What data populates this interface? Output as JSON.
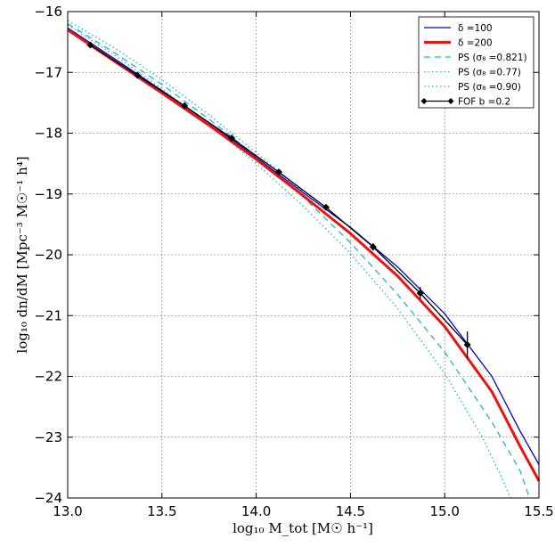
{
  "chart_data": {
    "type": "line",
    "xlabel": "log₁₀ M_tot [M☉ h⁻¹]",
    "ylabel": "log₁₀ dn/dM [Mpc⁻³ M☉⁻¹ h⁴]",
    "xlim": [
      13.0,
      15.5
    ],
    "ylim": [
      -24,
      -16
    ],
    "xticks": [
      "13.0",
      "13.5",
      "14.0",
      "14.5",
      "15.0",
      "15.5"
    ],
    "yticks": [
      "−16",
      "−17",
      "−18",
      "−19",
      "−20",
      "−21",
      "−22",
      "−23",
      "−24"
    ],
    "grid": true,
    "legend_position": "top-right",
    "series": [
      {
        "name": "δ =100",
        "color": "#0000cc",
        "style": "solid",
        "width": "thin",
        "x": [
          13.0,
          13.25,
          13.5,
          13.75,
          14.0,
          14.25,
          14.5,
          14.75,
          15.0,
          15.25,
          15.4,
          15.5
        ],
        "y": [
          -16.27,
          -16.78,
          -17.3,
          -17.83,
          -18.4,
          -18.98,
          -19.55,
          -20.2,
          -20.97,
          -22.0,
          -22.9,
          -23.45
        ]
      },
      {
        "name": "δ =200",
        "color": "#ee1111",
        "style": "solid",
        "width": "thick",
        "x": [
          13.0,
          13.25,
          13.5,
          13.75,
          14.0,
          14.25,
          14.5,
          14.75,
          15.0,
          15.25,
          15.4,
          15.5
        ],
        "y": [
          -16.3,
          -16.82,
          -17.34,
          -17.87,
          -18.43,
          -19.03,
          -19.65,
          -20.35,
          -21.18,
          -22.25,
          -23.15,
          -23.72
        ]
      },
      {
        "name": "PS (σ₈ =0.821)",
        "color": "#1fb8b8",
        "style": "dashed",
        "width": "thin",
        "x": [
          13.0,
          13.25,
          13.5,
          13.75,
          14.0,
          14.25,
          14.5,
          14.75,
          15.0,
          15.25,
          15.4,
          15.45
        ],
        "y": [
          -16.2,
          -16.68,
          -17.2,
          -17.77,
          -18.38,
          -19.05,
          -19.8,
          -20.65,
          -21.6,
          -22.75,
          -23.55,
          -24.0
        ]
      },
      {
        "name": "PS (σ₈ =0.77)",
        "color": "#1fb8b8",
        "style": "dotted",
        "width": "thin",
        "x": [
          13.0,
          13.25,
          13.5,
          13.75,
          14.0,
          14.25,
          14.5,
          14.75,
          15.0,
          15.2,
          15.3,
          15.35
        ],
        "y": [
          -16.22,
          -16.72,
          -17.27,
          -17.86,
          -18.5,
          -19.2,
          -19.98,
          -20.88,
          -21.95,
          -23.0,
          -23.65,
          -24.0
        ]
      },
      {
        "name": "PS (σ₈ =0.90)",
        "color": "#1fb8b8",
        "style": "dotted",
        "width": "thin",
        "x": [
          13.0,
          13.25,
          13.5,
          13.75,
          14.0,
          14.25
        ],
        "y": [
          -16.15,
          -16.6,
          -17.12,
          -17.7,
          -18.32,
          -18.97
        ]
      },
      {
        "name": "FOF b =0.2",
        "color": "#000000",
        "style": "solid",
        "width": "thin",
        "markers": "diamond",
        "x": [
          13.12,
          13.37,
          13.62,
          13.87,
          14.12,
          14.37,
          14.62,
          14.87,
          15.12
        ],
        "y": [
          -16.55,
          -17.05,
          -17.55,
          -18.08,
          -18.64,
          -19.22,
          -19.87,
          -20.63,
          -21.48
        ],
        "yerr": [
          0.02,
          0.02,
          0.02,
          0.02,
          0.03,
          0.04,
          0.06,
          0.1,
          0.22
        ]
      }
    ]
  }
}
